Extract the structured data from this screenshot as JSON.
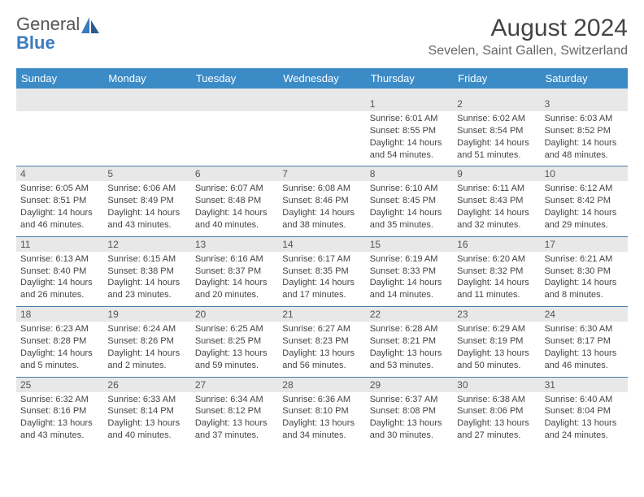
{
  "logo": {
    "line1": "General",
    "line2": "Blue",
    "color_gray": "#555555",
    "color_blue": "#3b7bbf"
  },
  "header": {
    "month_title": "August 2024",
    "location": "Sevelen, Saint Gallen, Switzerland"
  },
  "style": {
    "header_bg": "#3b8bc7",
    "header_text": "#ffffff",
    "daynum_bg": "#e8e8e8",
    "border_color": "#4a7ba8",
    "text_color": "#444444",
    "body_fontsize": 11,
    "weekday_fontsize": 13,
    "title_fontsize": 30,
    "location_fontsize": 16
  },
  "weekdays": [
    "Sunday",
    "Monday",
    "Tuesday",
    "Wednesday",
    "Thursday",
    "Friday",
    "Saturday"
  ],
  "weeks": [
    [
      {
        "day": "",
        "sunrise": "",
        "sunset": "",
        "daylight": ""
      },
      {
        "day": "",
        "sunrise": "",
        "sunset": "",
        "daylight": ""
      },
      {
        "day": "",
        "sunrise": "",
        "sunset": "",
        "daylight": ""
      },
      {
        "day": "",
        "sunrise": "",
        "sunset": "",
        "daylight": ""
      },
      {
        "day": "1",
        "sunrise": "Sunrise: 6:01 AM",
        "sunset": "Sunset: 8:55 PM",
        "daylight": "Daylight: 14 hours and 54 minutes."
      },
      {
        "day": "2",
        "sunrise": "Sunrise: 6:02 AM",
        "sunset": "Sunset: 8:54 PM",
        "daylight": "Daylight: 14 hours and 51 minutes."
      },
      {
        "day": "3",
        "sunrise": "Sunrise: 6:03 AM",
        "sunset": "Sunset: 8:52 PM",
        "daylight": "Daylight: 14 hours and 48 minutes."
      }
    ],
    [
      {
        "day": "4",
        "sunrise": "Sunrise: 6:05 AM",
        "sunset": "Sunset: 8:51 PM",
        "daylight": "Daylight: 14 hours and 46 minutes."
      },
      {
        "day": "5",
        "sunrise": "Sunrise: 6:06 AM",
        "sunset": "Sunset: 8:49 PM",
        "daylight": "Daylight: 14 hours and 43 minutes."
      },
      {
        "day": "6",
        "sunrise": "Sunrise: 6:07 AM",
        "sunset": "Sunset: 8:48 PM",
        "daylight": "Daylight: 14 hours and 40 minutes."
      },
      {
        "day": "7",
        "sunrise": "Sunrise: 6:08 AM",
        "sunset": "Sunset: 8:46 PM",
        "daylight": "Daylight: 14 hours and 38 minutes."
      },
      {
        "day": "8",
        "sunrise": "Sunrise: 6:10 AM",
        "sunset": "Sunset: 8:45 PM",
        "daylight": "Daylight: 14 hours and 35 minutes."
      },
      {
        "day": "9",
        "sunrise": "Sunrise: 6:11 AM",
        "sunset": "Sunset: 8:43 PM",
        "daylight": "Daylight: 14 hours and 32 minutes."
      },
      {
        "day": "10",
        "sunrise": "Sunrise: 6:12 AM",
        "sunset": "Sunset: 8:42 PM",
        "daylight": "Daylight: 14 hours and 29 minutes."
      }
    ],
    [
      {
        "day": "11",
        "sunrise": "Sunrise: 6:13 AM",
        "sunset": "Sunset: 8:40 PM",
        "daylight": "Daylight: 14 hours and 26 minutes."
      },
      {
        "day": "12",
        "sunrise": "Sunrise: 6:15 AM",
        "sunset": "Sunset: 8:38 PM",
        "daylight": "Daylight: 14 hours and 23 minutes."
      },
      {
        "day": "13",
        "sunrise": "Sunrise: 6:16 AM",
        "sunset": "Sunset: 8:37 PM",
        "daylight": "Daylight: 14 hours and 20 minutes."
      },
      {
        "day": "14",
        "sunrise": "Sunrise: 6:17 AM",
        "sunset": "Sunset: 8:35 PM",
        "daylight": "Daylight: 14 hours and 17 minutes."
      },
      {
        "day": "15",
        "sunrise": "Sunrise: 6:19 AM",
        "sunset": "Sunset: 8:33 PM",
        "daylight": "Daylight: 14 hours and 14 minutes."
      },
      {
        "day": "16",
        "sunrise": "Sunrise: 6:20 AM",
        "sunset": "Sunset: 8:32 PM",
        "daylight": "Daylight: 14 hours and 11 minutes."
      },
      {
        "day": "17",
        "sunrise": "Sunrise: 6:21 AM",
        "sunset": "Sunset: 8:30 PM",
        "daylight": "Daylight: 14 hours and 8 minutes."
      }
    ],
    [
      {
        "day": "18",
        "sunrise": "Sunrise: 6:23 AM",
        "sunset": "Sunset: 8:28 PM",
        "daylight": "Daylight: 14 hours and 5 minutes."
      },
      {
        "day": "19",
        "sunrise": "Sunrise: 6:24 AM",
        "sunset": "Sunset: 8:26 PM",
        "daylight": "Daylight: 14 hours and 2 minutes."
      },
      {
        "day": "20",
        "sunrise": "Sunrise: 6:25 AM",
        "sunset": "Sunset: 8:25 PM",
        "daylight": "Daylight: 13 hours and 59 minutes."
      },
      {
        "day": "21",
        "sunrise": "Sunrise: 6:27 AM",
        "sunset": "Sunset: 8:23 PM",
        "daylight": "Daylight: 13 hours and 56 minutes."
      },
      {
        "day": "22",
        "sunrise": "Sunrise: 6:28 AM",
        "sunset": "Sunset: 8:21 PM",
        "daylight": "Daylight: 13 hours and 53 minutes."
      },
      {
        "day": "23",
        "sunrise": "Sunrise: 6:29 AM",
        "sunset": "Sunset: 8:19 PM",
        "daylight": "Daylight: 13 hours and 50 minutes."
      },
      {
        "day": "24",
        "sunrise": "Sunrise: 6:30 AM",
        "sunset": "Sunset: 8:17 PM",
        "daylight": "Daylight: 13 hours and 46 minutes."
      }
    ],
    [
      {
        "day": "25",
        "sunrise": "Sunrise: 6:32 AM",
        "sunset": "Sunset: 8:16 PM",
        "daylight": "Daylight: 13 hours and 43 minutes."
      },
      {
        "day": "26",
        "sunrise": "Sunrise: 6:33 AM",
        "sunset": "Sunset: 8:14 PM",
        "daylight": "Daylight: 13 hours and 40 minutes."
      },
      {
        "day": "27",
        "sunrise": "Sunrise: 6:34 AM",
        "sunset": "Sunset: 8:12 PM",
        "daylight": "Daylight: 13 hours and 37 minutes."
      },
      {
        "day": "28",
        "sunrise": "Sunrise: 6:36 AM",
        "sunset": "Sunset: 8:10 PM",
        "daylight": "Daylight: 13 hours and 34 minutes."
      },
      {
        "day": "29",
        "sunrise": "Sunrise: 6:37 AM",
        "sunset": "Sunset: 8:08 PM",
        "daylight": "Daylight: 13 hours and 30 minutes."
      },
      {
        "day": "30",
        "sunrise": "Sunrise: 6:38 AM",
        "sunset": "Sunset: 8:06 PM",
        "daylight": "Daylight: 13 hours and 27 minutes."
      },
      {
        "day": "31",
        "sunrise": "Sunrise: 6:40 AM",
        "sunset": "Sunset: 8:04 PM",
        "daylight": "Daylight: 13 hours and 24 minutes."
      }
    ]
  ]
}
